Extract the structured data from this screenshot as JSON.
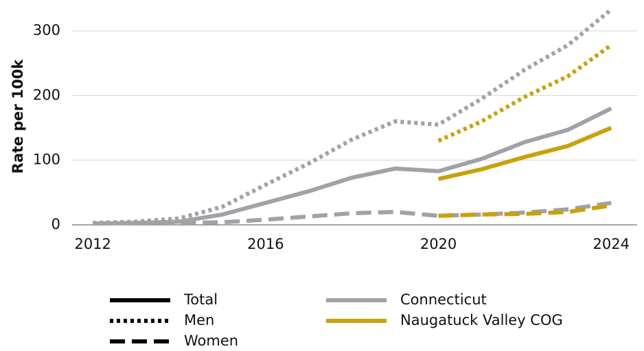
{
  "chart_data": {
    "type": "line",
    "y_label": "Rate per 100k",
    "x": [
      2012,
      2013,
      2014,
      2015,
      2016,
      2017,
      2018,
      2019,
      2020,
      2021,
      2022,
      2023,
      2024
    ],
    "xlim": [
      2011.52,
      2024.6
    ],
    "xticks": [
      2012,
      2016,
      2020,
      2024
    ],
    "ylim": [
      0,
      335
    ],
    "yticks": [
      0,
      100,
      200,
      300
    ],
    "grid": true,
    "legend": {
      "styles": [
        {
          "label": "Total",
          "dash": "solid"
        },
        {
          "label": "Men",
          "dash": "dotted"
        },
        {
          "label": "Women",
          "dash": "dashed"
        }
      ],
      "regions": [
        {
          "label": "Connecticut",
          "color": "#a0a2a5"
        },
        {
          "label": "Naugatuck Valley COG",
          "color": "#c9a10c"
        }
      ]
    },
    "series": [
      {
        "region": "Connecticut",
        "style": "Men",
        "values": [
          3,
          5,
          10,
          28,
          62,
          95,
          132,
          160,
          155,
          195,
          240,
          278,
          333
        ]
      },
      {
        "region": "Connecticut",
        "style": "Total",
        "values": [
          2,
          3,
          5,
          16,
          34,
          52,
          73,
          87,
          83,
          102,
          128,
          147,
          180
        ]
      },
      {
        "region": "Connecticut",
        "style": "Women",
        "values": [
          2,
          3,
          3,
          4,
          8,
          13,
          18,
          20,
          14,
          16,
          19,
          24,
          34
        ]
      },
      {
        "region": "Naugatuck Valley COG",
        "style": "Men",
        "values": [
          null,
          null,
          null,
          null,
          null,
          null,
          null,
          null,
          130,
          160,
          198,
          230,
          278
        ]
      },
      {
        "region": "Naugatuck Valley COG",
        "style": "Total",
        "values": [
          null,
          null,
          null,
          null,
          null,
          null,
          null,
          null,
          71,
          86,
          105,
          122,
          150
        ]
      },
      {
        "region": "Naugatuck Valley COG",
        "style": "Women",
        "values": [
          null,
          null,
          null,
          null,
          null,
          null,
          null,
          null,
          14,
          16,
          17,
          20,
          30
        ]
      }
    ]
  }
}
